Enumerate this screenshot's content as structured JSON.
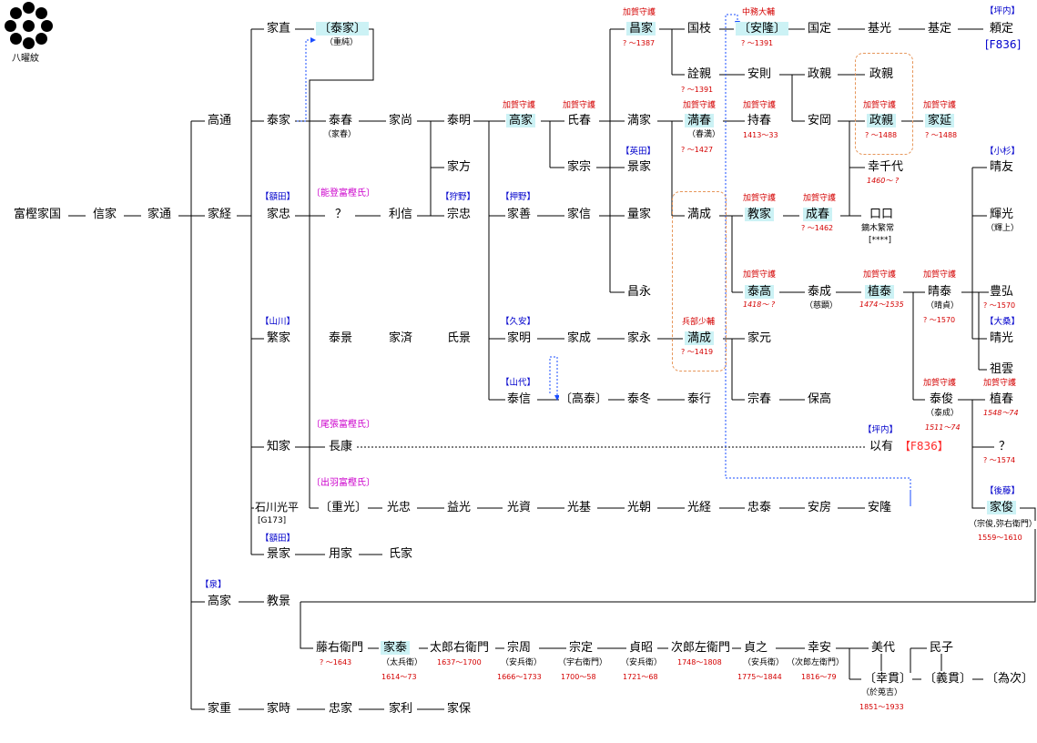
{
  "crest": {
    "label": "八曜紋",
    "icon": "eight-star-crest-icon"
  },
  "names": {
    "tomigashi_iekuni": "富樫家国",
    "nobuie": "信家",
    "iemichi": "家通",
    "takamichi": "高通",
    "ietsune": "家経",
    "takaie": "高家",
    "iesige": "家重",
    "ienao": "家直",
    "yasuie": "泰家",
    "ietada": "家忠",
    "shigeie": "繁家",
    "tomoie": "知家",
    "ishikawa_mitsuhira": "石川光平",
    "ref_g173": "[G173]",
    "kageie": "景家",
    "norikage": "教景",
    "yasuie_b": "〔泰家〕",
    "shigezumi": "（重純）",
    "yasuharu": "泰春",
    "ieharu_alias": "（家春）",
    "iehisa": "家尚",
    "yasuaki": "泰明",
    "iekata": "家方",
    "q": "？",
    "toshinobu": "利信",
    "munetada": "宗忠",
    "yasukage": "泰景",
    "iezumi": "家済",
    "ujikage": "氏景",
    "nagayasu": "長康",
    "shigemitsu_b": "〔重光〕",
    "mitsutada": "光忠",
    "masumitsu": "益光",
    "mitsusuke": "光資",
    "mitsumoto": "光基",
    "mitsutomo": "光朝",
    "mitsutsune": "光経",
    "tadayasu": "忠泰",
    "yasufusa": "安房",
    "yasutaka": "安隆",
    "youka": "用家",
    "ujiie": "氏家",
    "iesato": "家時",
    "tadaie": "忠家",
    "ietoshi": "家利",
    "ieyasu_c": "家保",
    "takaie2": "高家",
    "ujiharu": "氏春",
    "mitsuie": "満家",
    "iemune": "家宗",
    "ieyoshi": "家善",
    "ienobu": "家信",
    "ieaki": "家明",
    "ienari": "家成",
    "ienaga": "家永",
    "yasunobu": "泰信",
    "takayasu_b": "〔高泰〕",
    "yasufuyu": "泰冬",
    "yasuyuki": "泰行",
    "masaie": "昌家",
    "kunieda": "国枝",
    "yasutaka_b": "〔安隆〕",
    "kunisada": "国定",
    "motomitsu": "基光",
    "motosada": "基定",
    "yorisada": "頼定",
    "nobuchika": "詮親",
    "yasunori": "安則",
    "masachika_a": "政親",
    "mitsuharu": "満春",
    "haruman": "（春満）",
    "mochiharu": "持春",
    "kageie2": "景家",
    "kazuie": "量家",
    "mitsunari_a": "満成",
    "noriie": "教家",
    "shigeharu": "成春",
    "masanaga": "昌永",
    "yasutaka2": "泰高",
    "yasunari": "泰成",
    "jiken": "（慈顕）",
    "shigeyasu": "植泰",
    "haruyasu": "晴泰",
    "haruzane": "（晴貞）",
    "mitsunari_b": "満成",
    "iemoto": "家元",
    "muneharu": "宗春",
    "yasutaka3": "保高",
    "masachika": "政親",
    "masachika_b": "政親",
    "ienobu2": "家延",
    "yasuoka": "安岡",
    "kochiyo": "幸千代",
    "boxes": "口口",
    "kaburaki": "鏑木繁常",
    "stars": "[****]",
    "aritomo": "以有",
    "ref_f836b": "【F836】",
    "yasutoshi": "泰俊",
    "yasunari2": "（泰成）",
    "ueharu": "植春",
    "q2": "？",
    "haruto": "晴友",
    "terumitsu": "輝光",
    "teruue": "（輝上）",
    "toyohiro": "豊弘",
    "harumitsu": "晴光",
    "sowun": "祖雲",
    "ietoshi2": "家俊",
    "ietoshi2_alias": "（宗俊,弥右衛門）",
    "tokuemon": "藤右衛門",
    "ieyasu_d": "家泰",
    "tahyoe": "（太兵衛）",
    "tarouemon": "太郎右衛門",
    "munechika": "宗周",
    "yasuhyoe": "（安兵衛）",
    "munesada": "宗定",
    "uemon": "（宇右衛門）",
    "sadaaki": "貞昭",
    "yasuhyoe2": "（安兵衛）",
    "jiroza": "次郎左衛門",
    "sadayuki": "貞之",
    "yasuhyoe3": "（安兵衛）",
    "yukiyasu": "幸安",
    "jirozae2": "（次郎左衛門）",
    "miyo": "美代",
    "kouki_b": "〔幸貫〕",
    "okoukichi": "（於莵吉）",
    "tamiko": "民子",
    "yoshinuki_b": "〔義貫〕",
    "tametsugu_b": "〔為次〕",
    "ref_tsubouchi": "【坪内】",
    "ref_f836": "[F836]"
  },
  "clans": {
    "nukada1": "【額田】",
    "yamakawa": "【山川】",
    "nukada2": "【額田】",
    "izumi": "【泉】",
    "karino": "【狩野】",
    "oshino": "【押野】",
    "kuyasu": "【久安】",
    "yamashiro": "【山代】",
    "eita": "【英田】",
    "tsubouchi2": "【坪内】",
    "kosugi": "【小杉】",
    "okuwa": "【大桑】",
    "goto": "【後藤】"
  },
  "branches": {
    "noto": "〔能登富樫氏〕",
    "owari": "〔尾張富樫氏〕",
    "dewa": "〔出羽富樫氏〕"
  },
  "titles": {
    "kaga1": "加賀守護",
    "kaga2": "加賀守護",
    "kaga3": "加賀守護",
    "kaga4": "加賀守護",
    "kaga5": "加賀守護",
    "kaga6": "加賀守護",
    "kaga7": "加賀守護",
    "kaga8": "加賀守護",
    "kaga9": "加賀守護",
    "kaga10": "加賀守護",
    "kaga11": "加賀守護",
    "kaga12": "加賀守護",
    "kaga13": "加賀守護",
    "kaga14": "加賀守護",
    "nakatsukasa": "中務大輔",
    "hyobu": "兵部少輔"
  },
  "dates": {
    "masaie": "? ～1387",
    "yasutaka": "? ～1391",
    "nobuchika": "? ～1391",
    "mitsuharu": "? ～1427",
    "mochiharu": "1413～33",
    "masachika": "? ～1488",
    "ienobu": "? ～1488",
    "kochiyo": "1460～ ?",
    "shigeharu": "? ～1462",
    "yasutaka2": "1418～ ?",
    "shigeyasu": "1474～1535",
    "haruyasu": "? ～1570",
    "mitsunari": "? ～1419",
    "toyohiro": "? ～1570",
    "yasutoshi": "1511～74",
    "ueharu": "1548～74",
    "q2": "? ～1574",
    "ietoshi": "1559～1610",
    "tokuemon": "? ～1643",
    "ieyasu": "1614～73",
    "tarouemon": "1637～1700",
    "munechika": "1666～1733",
    "munesada": "1700～58",
    "sadaaki": "1721～68",
    "jiroza": "1748～1808",
    "sadayuki": "1775～1844",
    "yukiyasu": "1816～79",
    "kouki": "1851～1933"
  },
  "colors": {
    "highlight": "#ccf2f5",
    "title_red": "#d40000",
    "clan_blue": "#0000cc",
    "branch_magenta": "#cc00cc",
    "box_orange": "#e6965a",
    "arrow_blue": "#1a4cff"
  }
}
